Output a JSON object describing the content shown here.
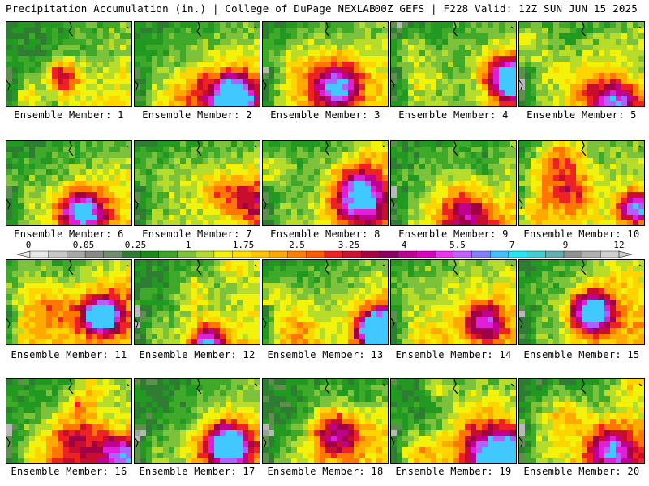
{
  "header": {
    "left": "Precipitation Accumulation (in.) | College of DuPage NEXLAB",
    "right": "00Z GEFS | F228 Valid: 12Z SUN JUN 15 2025"
  },
  "members": [
    {
      "label": "Ensemble Member: 1"
    },
    {
      "label": "Ensemble Member: 2"
    },
    {
      "label": "Ensemble Member: 3"
    },
    {
      "label": "Ensemble Member: 4"
    },
    {
      "label": "Ensemble Member: 5"
    },
    {
      "label": "Ensemble Member: 6"
    },
    {
      "label": "Ensemble Member: 7"
    },
    {
      "label": "Ensemble Member: 8"
    },
    {
      "label": "Ensemble Member: 9"
    },
    {
      "label": "Ensemble Member: 10"
    },
    {
      "label": "Ensemble Member: 11"
    },
    {
      "label": "Ensemble Member: 12"
    },
    {
      "label": "Ensemble Member: 13"
    },
    {
      "label": "Ensemble Member: 14"
    },
    {
      "label": "Ensemble Member: 15"
    },
    {
      "label": "Ensemble Member: 16"
    },
    {
      "label": "Ensemble Member: 17"
    },
    {
      "label": "Ensemble Member: 18"
    },
    {
      "label": "Ensemble Member: 19"
    },
    {
      "label": "Ensemble Member: 20"
    }
  ],
  "colorbar": {
    "ticks": [
      "0",
      "0.05",
      "0.25",
      "1",
      "1.75",
      "2.5",
      "3.25",
      "4",
      "5.5",
      "7",
      "9",
      "12"
    ],
    "colors": [
      "#e8e8e8",
      "#c8c8c8",
      "#a8a8a8",
      "#888888",
      "#6e8e6e",
      "#2e7d32",
      "#1b8a1b",
      "#3fa32a",
      "#7cc23a",
      "#b5dc2a",
      "#f2f20a",
      "#ffe000",
      "#ffc400",
      "#ffa800",
      "#ff8000",
      "#ff5a00",
      "#f02020",
      "#d01030",
      "#a80040",
      "#900060",
      "#c00090",
      "#e000c0",
      "#f030f0",
      "#c060ff",
      "#8080ff",
      "#40c0ff",
      "#20e8f0",
      "#40d0d0",
      "#60b0b0",
      "#909090",
      "#b0b0b0",
      "#d0d0d0"
    ]
  }
}
